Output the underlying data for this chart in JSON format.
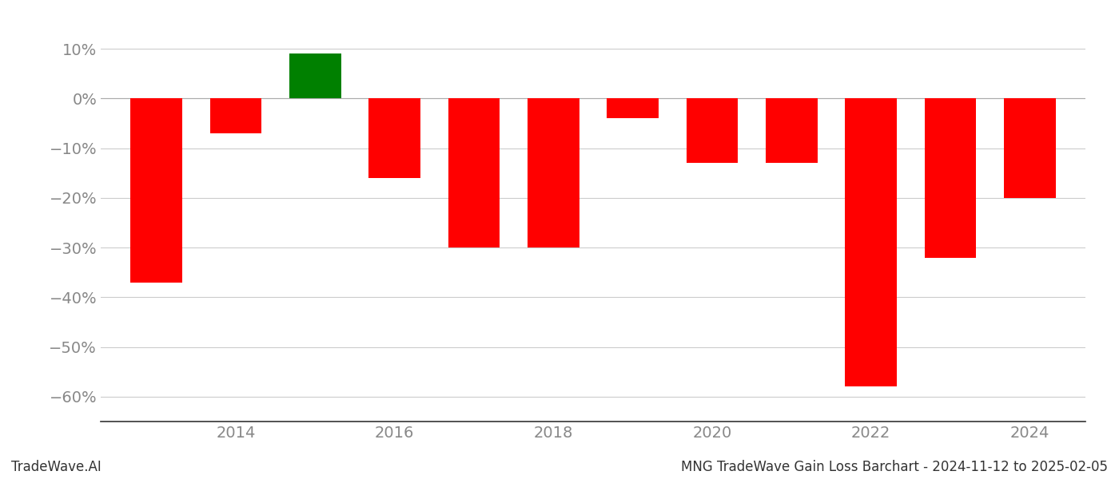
{
  "years": [
    2013,
    2014,
    2015,
    2016,
    2017,
    2018,
    2019,
    2020,
    2021,
    2022,
    2023,
    2024
  ],
  "values": [
    -0.37,
    -0.07,
    0.09,
    -0.16,
    -0.3,
    -0.3,
    -0.04,
    -0.13,
    -0.13,
    -0.58,
    -0.32,
    -0.2
  ],
  "bar_colors": [
    "#ff0000",
    "#ff0000",
    "#008000",
    "#ff0000",
    "#ff0000",
    "#ff0000",
    "#ff0000",
    "#ff0000",
    "#ff0000",
    "#ff0000",
    "#ff0000",
    "#ff0000"
  ],
  "ylim": [
    -0.65,
    0.15
  ],
  "yticks": [
    -0.6,
    -0.5,
    -0.4,
    -0.3,
    -0.2,
    -0.1,
    0.0,
    0.1
  ],
  "xtick_labels": [
    "2014",
    "2016",
    "2018",
    "2020",
    "2022",
    "2024"
  ],
  "xtick_positions": [
    2014,
    2016,
    2018,
    2020,
    2022,
    2024
  ],
  "bottom_left_text": "TradeWave.AI",
  "bottom_right_text": "MNG TradeWave Gain Loss Barchart - 2024-11-12 to 2025-02-05",
  "background_color": "#ffffff",
  "grid_color": "#cccccc",
  "text_color": "#888888",
  "bar_width": 0.65
}
